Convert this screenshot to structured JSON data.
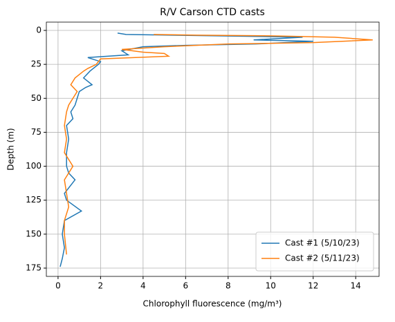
{
  "chart_data": {
    "type": "line",
    "title": "R/V Carson CTD casts",
    "x_label": "Chlorophyll fluorescence (mg/m³)",
    "y_label": "Depth (m)",
    "xlim": [
      -0.55,
      15.1
    ],
    "xticks": [
      0,
      2,
      4,
      6,
      8,
      10,
      12,
      14
    ],
    "ylim": [
      181.1,
      -6.1
    ],
    "yticks": [
      0,
      25,
      50,
      75,
      100,
      125,
      150,
      175
    ],
    "grid": true,
    "legend": "lower right",
    "series": [
      {
        "name": "Cast #1 (5/10/23)",
        "color": "#1f77b4",
        "x": [
          2.8,
          3.2,
          7.5,
          11.5,
          9.2,
          12.0,
          9.3,
          6.0,
          4.0,
          3.0,
          3.3,
          1.4,
          2.0,
          1.9,
          1.5,
          1.2,
          1.6,
          1.3,
          1.0,
          0.9,
          0.8,
          0.6,
          0.7,
          0.4,
          0.5,
          0.4,
          0.4,
          0.5,
          0.8,
          0.3,
          0.4,
          1.1,
          0.3,
          0.2,
          0.3,
          0.2,
          0.1
        ],
        "values": [
          2,
          3,
          4,
          5,
          7,
          8,
          10,
          11,
          12,
          15,
          18,
          20,
          23,
          25,
          30,
          35,
          40,
          42,
          45,
          50,
          55,
          60,
          65,
          70,
          80,
          90,
          100,
          105,
          110,
          120,
          125,
          133,
          140,
          150,
          160,
          168,
          174
        ]
      },
      {
        "name": "Cast #2 (5/11/23)",
        "color": "#ff7f0e",
        "x": [
          4.5,
          6.5,
          10.0,
          13.0,
          14.8,
          12.0,
          8.0,
          5.0,
          3.0,
          4.0,
          5.0,
          5.2,
          2.0,
          1.8,
          1.4,
          1.2,
          0.8,
          0.6,
          0.9,
          0.7,
          0.5,
          0.4,
          0.3,
          0.4,
          0.3,
          0.7,
          0.3,
          0.4,
          0.5,
          0.3,
          0.3,
          0.4
        ],
        "values": [
          3,
          3.5,
          4,
          5,
          7,
          9,
          10,
          12,
          14,
          16,
          17,
          19,
          21,
          25,
          28,
          30,
          35,
          40,
          45,
          50,
          55,
          60,
          70,
          80,
          90,
          100,
          110,
          120,
          130,
          140,
          150,
          165
        ]
      }
    ]
  }
}
